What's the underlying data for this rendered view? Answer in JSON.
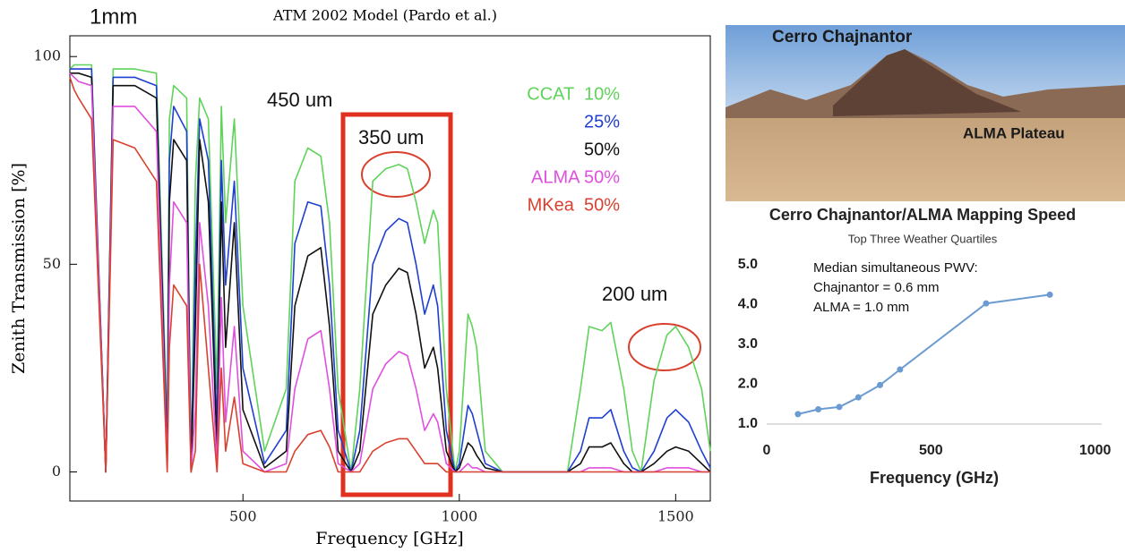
{
  "chart_data": [
    {
      "type": "line",
      "title": "ATM 2002 Model (Pardo et al.)",
      "x_label": "Frequency [GHz]",
      "y_label": "Zenith Transmission [%]",
      "xlim": [
        100,
        1580
      ],
      "ylim": [
        -7,
        105
      ],
      "xticks": [
        500,
        1000,
        1500
      ],
      "yticks": [
        0,
        50,
        100
      ],
      "grid": false,
      "annotations": [
        "1mm",
        "450 um",
        "350 um",
        "200 um"
      ],
      "x": [
        100,
        110,
        120,
        150,
        183,
        200,
        250,
        300,
        325,
        330,
        340,
        370,
        380,
        390,
        400,
        420,
        440,
        450,
        460,
        480,
        500,
        550,
        600,
        620,
        650,
        680,
        700,
        720,
        750,
        770,
        800,
        830,
        860,
        880,
        900,
        920,
        940,
        950,
        970,
        990,
        1000,
        1020,
        1030,
        1040,
        1060,
        1100,
        1150,
        1200,
        1250,
        1280,
        1300,
        1330,
        1350,
        1380,
        1400,
        1420,
        1450,
        1480,
        1500,
        1530,
        1560,
        1580
      ],
      "series": [
        {
          "name": "CCAT  10%",
          "color": "#5fd35a",
          "values": [
            97,
            98,
            98,
            98,
            0,
            97,
            97,
            96,
            10,
            85,
            93,
            90,
            0,
            70,
            90,
            85,
            20,
            88,
            60,
            85,
            40,
            5,
            20,
            70,
            78,
            76,
            60,
            20,
            0,
            20,
            70,
            73,
            74,
            73,
            65,
            55,
            63,
            60,
            20,
            0,
            5,
            38,
            35,
            30,
            5,
            0,
            0,
            0,
            0,
            20,
            35,
            34,
            36,
            20,
            5,
            0,
            22,
            33,
            35,
            30,
            20,
            5
          ]
        },
        {
          "name": "25%",
          "color": "#1f3fd0",
          "values": [
            97,
            97,
            97,
            97,
            0,
            95,
            95,
            93,
            5,
            75,
            88,
            82,
            0,
            50,
            85,
            75,
            10,
            75,
            45,
            70,
            25,
            2,
            10,
            55,
            65,
            64,
            45,
            10,
            0,
            10,
            50,
            58,
            61,
            60,
            50,
            38,
            45,
            40,
            10,
            0,
            2,
            16,
            14,
            10,
            2,
            0,
            0,
            0,
            0,
            5,
            13,
            13,
            15,
            5,
            1,
            0,
            5,
            13,
            15,
            12,
            5,
            1
          ]
        },
        {
          "name": "50%",
          "color": "#111111",
          "values": [
            96,
            96,
            96,
            95,
            0,
            93,
            93,
            90,
            2,
            65,
            80,
            75,
            0,
            35,
            80,
            65,
            5,
            65,
            30,
            60,
            15,
            1,
            5,
            40,
            52,
            54,
            35,
            5,
            0,
            5,
            38,
            45,
            49,
            48,
            38,
            25,
            30,
            25,
            5,
            0,
            1,
            7,
            6,
            4,
            1,
            0,
            0,
            0,
            0,
            2,
            6,
            6,
            7,
            2,
            0,
            0,
            2,
            5,
            6,
            5,
            2,
            0
          ]
        },
        {
          "name": "ALMA 50%",
          "color": "#e04fe0",
          "values": [
            96,
            95,
            94,
            93,
            0,
            88,
            88,
            82,
            1,
            45,
            65,
            60,
            0,
            15,
            60,
            40,
            2,
            42,
            12,
            35,
            5,
            0,
            2,
            20,
            32,
            34,
            20,
            2,
            0,
            2,
            20,
            26,
            29,
            28,
            20,
            10,
            14,
            12,
            2,
            0,
            0,
            2,
            1,
            1,
            0,
            0,
            0,
            0,
            0,
            0,
            1,
            1,
            1,
            0,
            0,
            0,
            0,
            1,
            1,
            1,
            0,
            0
          ]
        },
        {
          "name": "MKea  50%",
          "color": "#d9412f",
          "values": [
            95,
            92,
            90,
            85,
            0,
            80,
            78,
            70,
            0,
            30,
            45,
            40,
            0,
            5,
            50,
            25,
            0,
            25,
            5,
            18,
            2,
            0,
            0,
            5,
            9,
            10,
            6,
            0,
            0,
            0,
            5,
            7,
            8,
            8,
            5,
            2,
            2,
            2,
            0,
            0,
            0,
            0,
            0,
            0,
            0,
            0,
            0,
            0,
            0,
            0,
            0,
            0,
            0,
            0,
            0,
            0,
            0,
            0,
            0,
            0,
            0,
            0
          ]
        }
      ]
    },
    {
      "type": "line",
      "title": "Cerro Chajnantor/ALMA Mapping Speed",
      "subtitle": "Top Three Weather Quartiles",
      "x_label": "Frequency (GHz)",
      "xlim": [
        0,
        1020
      ],
      "ylim": [
        1,
        5
      ],
      "xticks": [
        0,
        500,
        1000
      ],
      "yticks": [
        {
          "value": 1,
          "label": "1.0"
        },
        {
          "value": 2,
          "label": "2.0"
        },
        {
          "value": 3,
          "label": "3.0"
        },
        {
          "value": 4,
          "label": "4.0"
        },
        {
          "value": 5,
          "label": "5.0"
        }
      ],
      "grid": false,
      "annotations": [
        "Median simultaneous PWV:",
        "Chajnantor = 0.6 mm",
        "ALMA = 1.0 mm"
      ],
      "color": "#6b9bd1",
      "x": [
        95,
        157,
        221,
        279,
        345,
        406,
        668,
        862
      ],
      "values": [
        1.25,
        1.37,
        1.43,
        1.67,
        1.98,
        2.37,
        4.03,
        4.25
      ]
    }
  ],
  "photo": {
    "labels": [
      "Cerro Chajnantor",
      "ALMA Plateau"
    ]
  }
}
